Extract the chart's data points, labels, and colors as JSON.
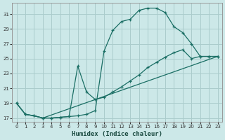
{
  "xlabel": "Humidex (Indice chaleur)",
  "bg_color": "#cce8e8",
  "grid_color": "#aacccc",
  "line_color": "#1a6e64",
  "xlim": [
    -0.5,
    23.5
  ],
  "ylim": [
    16.5,
    32.5
  ],
  "yticks": [
    17,
    19,
    21,
    23,
    25,
    27,
    29,
    31
  ],
  "xticks": [
    0,
    1,
    2,
    3,
    4,
    5,
    6,
    7,
    8,
    9,
    10,
    11,
    12,
    13,
    14,
    15,
    16,
    17,
    18,
    19,
    20,
    21,
    22,
    23
  ],
  "curve1_x": [
    0,
    1,
    2,
    3,
    4,
    5,
    6,
    7,
    8,
    9,
    10,
    11,
    12,
    13,
    14,
    15,
    16,
    17,
    18,
    19,
    20,
    21,
    22,
    23
  ],
  "curve1_y": [
    19,
    17.5,
    17.3,
    17.0,
    17.0,
    17.1,
    17.2,
    17.3,
    17.5,
    18.0,
    26.0,
    28.8,
    30.0,
    30.3,
    31.5,
    31.8,
    31.8,
    31.2,
    29.3,
    28.5,
    27.0,
    25.3,
    25.3,
    25.3
  ],
  "curve2_x": [
    0,
    1,
    2,
    3,
    4,
    5,
    6,
    7,
    8,
    9,
    10,
    11,
    12,
    13,
    14,
    15,
    16,
    17,
    18,
    19,
    20,
    21,
    22,
    23
  ],
  "curve2_y": [
    19,
    17.5,
    17.3,
    17.0,
    17.0,
    17.1,
    17.2,
    24.0,
    20.5,
    19.5,
    19.8,
    20.5,
    21.2,
    22.0,
    22.8,
    23.8,
    24.5,
    25.2,
    25.8,
    26.2,
    25.0,
    25.3,
    25.3,
    25.3
  ],
  "curve3_x": [
    0,
    1,
    2,
    3,
    23
  ],
  "curve3_y": [
    19,
    17.5,
    17.3,
    17.0,
    25.3
  ]
}
